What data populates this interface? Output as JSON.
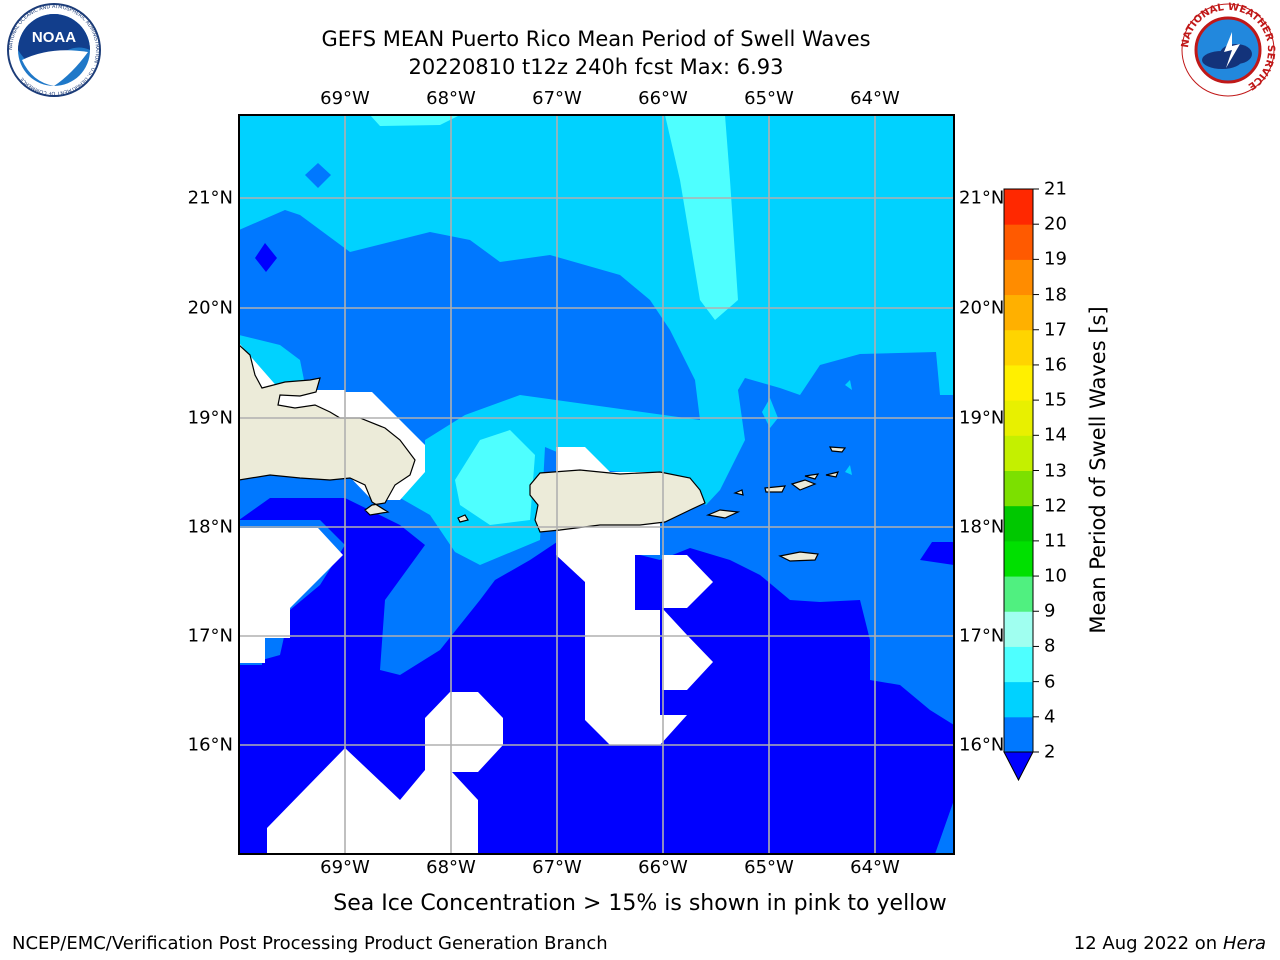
{
  "header": {
    "title_line1": "GEFS MEAN Puerto Rico Mean Period of Swell Waves",
    "title_line2": "20220810 t12z 240h fcst   Max: 6.93"
  },
  "logos": {
    "left": {
      "name": "noaa-logo",
      "text": "NOAA",
      "ring_text": "NATIONAL OCEANIC AND ATMOSPHERIC ADMINISTRATION · U.S. DEPARTMENT OF COMMERCE"
    },
    "right": {
      "name": "nws-logo",
      "ring_text": "NATIONAL WEATHER SERVICE"
    }
  },
  "map": {
    "lon_labels": [
      "69°W",
      "68°W",
      "67°W",
      "66°W",
      "65°W",
      "64°W"
    ],
    "lat_labels": [
      "21°N",
      "20°N",
      "19°N",
      "18°N",
      "17°N",
      "16°N"
    ],
    "extent": {
      "lon_min": -70.0,
      "lon_max": -63.25,
      "lat_min": 15.0,
      "lat_max": 21.75
    },
    "grid": true,
    "land_color": "#ecebd9",
    "nodata_color": "#ffffff"
  },
  "colorbar": {
    "title": "Mean Period of Swell Waves [s]",
    "levels": [
      "2",
      "4",
      "6",
      "8",
      "9",
      "10",
      "11",
      "12",
      "13",
      "14",
      "15",
      "16",
      "17",
      "18",
      "19",
      "20",
      "21"
    ],
    "colors": [
      "#0078ff",
      "#00d2ff",
      "#4effff",
      "#a0fff0",
      "#50f080",
      "#00e000",
      "#00c800",
      "#7ce000",
      "#c4f000",
      "#e8f000",
      "#fff000",
      "#ffd400",
      "#ffb000",
      "#ff8c00",
      "#ff5a00",
      "#ff2800",
      "#ff0000"
    ],
    "under_color": "#0000ff"
  },
  "footer": {
    "note": "Sea Ice Concentration > 15% is shown in pink to yellow",
    "credit": "NCEP/EMC/Verification Post Processing Product Generation Branch",
    "date": "12 Aug 2022 on",
    "machine": "Hera"
  }
}
